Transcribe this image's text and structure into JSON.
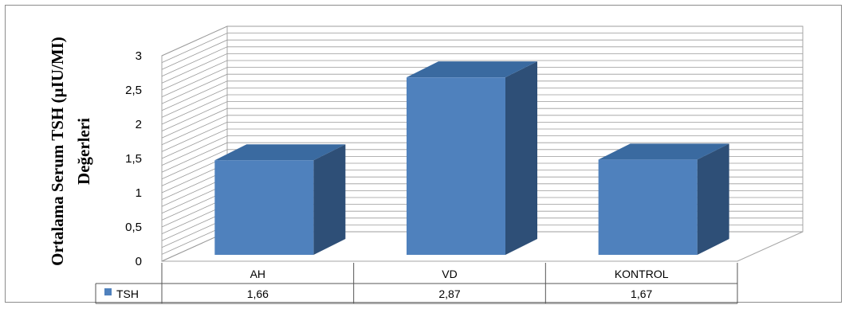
{
  "chart_data": {
    "type": "bar",
    "title": "",
    "ylabel_line1": "Ortalama Serum TSH (µIU/MI)",
    "ylabel_line2": "Değerleri",
    "categories": [
      "AH",
      "VD",
      "KONTROL"
    ],
    "series": [
      {
        "name": "TSH",
        "values_text": [
          "1,66",
          "2,87",
          "1,67"
        ],
        "values": [
          1.66,
          2.87,
          1.67
        ],
        "color": "#4f81bd"
      }
    ],
    "yticks": [
      "0",
      "0,5",
      "1",
      "1,5",
      "2",
      "2,5",
      "3"
    ],
    "ylim": [
      0,
      3
    ],
    "grid": true,
    "legend": "data-table",
    "colors": {
      "bar_front": "#4f81bd",
      "bar_side": "#2e4f77",
      "bar_top": "#3a6aa0"
    }
  }
}
